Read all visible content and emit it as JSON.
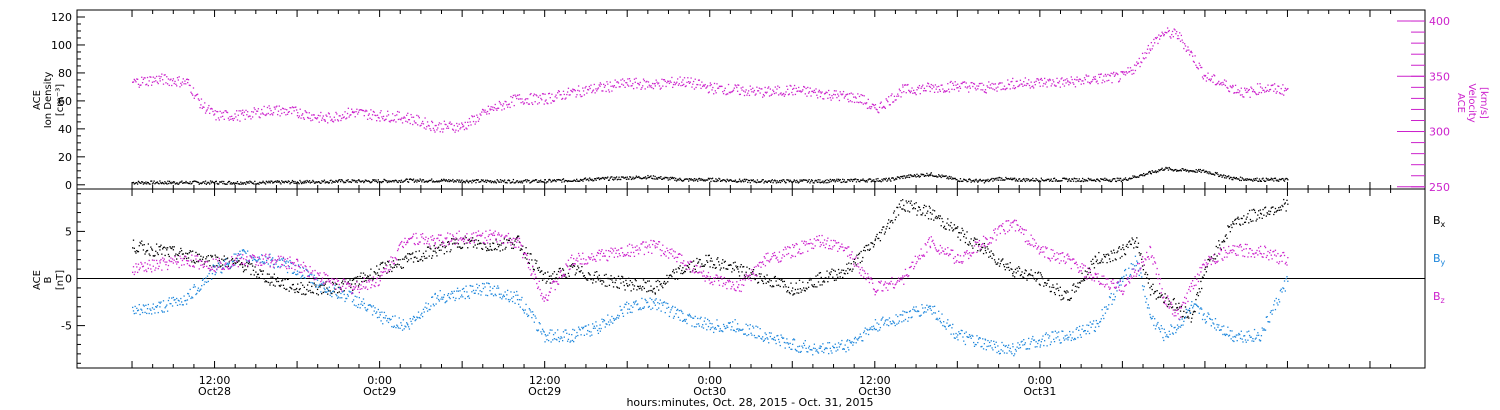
{
  "chart_data": [
    {
      "type": "scatter",
      "ylabel_lines": [
        "ACE",
        "Ion Density",
        "[cm⁻³]"
      ],
      "y2label_lines": [
        "ACE",
        "Velocity",
        "[km/s]"
      ],
      "ylim": [
        -3,
        125
      ],
      "yticks": [
        0,
        20,
        40,
        60,
        80,
        100,
        120
      ],
      "y2lim": [
        248,
        410
      ],
      "y2ticks": [
        250,
        300,
        350,
        400
      ],
      "series": [
        {
          "color": "#000000",
          "axis": "left",
          "x": [
            0,
            5,
            10,
            15,
            20,
            25,
            30,
            35,
            40,
            45,
            50,
            55,
            60,
            65,
            70,
            75,
            80,
            85,
            90,
            95,
            100,
            105,
            110,
            112,
            116,
            120,
            124,
            126,
            128,
            132,
            138,
            144,
            148,
            150,
            152,
            156,
            160,
            164,
            168
          ],
          "y": [
            2,
            2,
            2,
            2,
            2,
            2.5,
            3,
            3,
            3.5,
            3.5,
            3,
            3,
            3,
            4,
            5,
            6,
            4,
            4,
            3,
            3,
            3,
            3.5,
            4,
            6,
            8,
            4,
            3,
            5,
            4,
            4,
            4,
            4,
            9,
            12,
            11,
            10,
            5,
            4,
            4
          ]
        },
        {
          "color": "#cc22cc",
          "axis": "right",
          "x": [
            0,
            4,
            8,
            10,
            12,
            16,
            20,
            24,
            28,
            32,
            36,
            40,
            44,
            48,
            52,
            56,
            60,
            64,
            68,
            72,
            76,
            80,
            84,
            88,
            92,
            96,
            100,
            104,
            106,
            108,
            112,
            116,
            120,
            124,
            128,
            132,
            136,
            140,
            144,
            146,
            148,
            150,
            152,
            154,
            156,
            160,
            162,
            164,
            168
          ],
          "y": [
            345,
            348,
            345,
            325,
            315,
            315,
            320,
            318,
            312,
            318,
            315,
            313,
            305,
            305,
            320,
            330,
            330,
            336,
            340,
            344,
            343,
            346,
            340,
            338,
            336,
            338,
            335,
            332,
            330,
            320,
            338,
            340,
            342,
            340,
            344,
            345,
            345,
            348,
            350,
            360,
            378,
            390,
            388,
            370,
            350,
            340,
            335,
            340,
            338
          ]
        }
      ]
    },
    {
      "type": "scatter",
      "ylabel_lines": [
        "ACE",
        "B",
        "[nT]"
      ],
      "ylim": [
        -9.5,
        9.5
      ],
      "yticks": [
        -5,
        0,
        5
      ],
      "series": [
        {
          "name": "Bx",
          "color": "#000000",
          "x": [
            0,
            4,
            8,
            12,
            16,
            20,
            24,
            28,
            32,
            36,
            40,
            44,
            48,
            52,
            56,
            60,
            64,
            68,
            72,
            76,
            80,
            84,
            88,
            92,
            96,
            100,
            104,
            108,
            112,
            116,
            120,
            124,
            128,
            132,
            136,
            140,
            144,
            146,
            148,
            150,
            152,
            154,
            156,
            160,
            164,
            168
          ],
          "y": [
            3.5,
            3,
            2.5,
            2,
            1.5,
            0,
            -1,
            -1,
            -0.5,
            1,
            2,
            3,
            4,
            3.5,
            4,
            0,
            1,
            0,
            -0.5,
            -1,
            1,
            2,
            1,
            0,
            -1,
            0,
            1,
            4,
            8,
            7,
            5,
            3,
            1,
            0,
            -2,
            2,
            3,
            4,
            -1,
            -2,
            -3,
            -4,
            1,
            6,
            7,
            8
          ]
        },
        {
          "name": "By",
          "color": "#1e87dc",
          "x": [
            0,
            4,
            8,
            12,
            16,
            20,
            24,
            28,
            32,
            36,
            40,
            44,
            48,
            52,
            56,
            60,
            64,
            68,
            72,
            76,
            80,
            84,
            88,
            92,
            96,
            100,
            104,
            108,
            112,
            116,
            120,
            124,
            128,
            132,
            136,
            140,
            144,
            146,
            148,
            150,
            152,
            154,
            156,
            160,
            164,
            168
          ],
          "y": [
            -3.5,
            -3,
            -2,
            1,
            2.5,
            2,
            1,
            -1,
            -2,
            -4,
            -5,
            -2,
            -1.5,
            -1,
            -2,
            -6,
            -6,
            -5,
            -3,
            -2.5,
            -4,
            -5,
            -5,
            -6,
            -7,
            -7.5,
            -7,
            -5,
            -4,
            -3,
            -6,
            -7,
            -7.5,
            -6.5,
            -6,
            -5,
            0,
            2,
            -4,
            -6,
            -5,
            -3,
            -4,
            -6,
            -6,
            0
          ]
        },
        {
          "name": "Bz",
          "color": "#cc22cc",
          "x": [
            0,
            4,
            8,
            12,
            16,
            20,
            24,
            28,
            32,
            36,
            40,
            44,
            48,
            52,
            56,
            60,
            64,
            68,
            72,
            76,
            80,
            84,
            88,
            92,
            96,
            100,
            104,
            108,
            112,
            116,
            120,
            124,
            128,
            132,
            136,
            140,
            144,
            146,
            148,
            150,
            152,
            154,
            156,
            160,
            164,
            168
          ],
          "y": [
            1,
            1.5,
            2,
            1.5,
            2,
            2,
            1.5,
            0,
            -1,
            0,
            4.5,
            4,
            4.5,
            4.5,
            4,
            -2,
            2,
            2.5,
            3,
            3.5,
            2,
            0,
            -1,
            2,
            3,
            4,
            3,
            -1,
            0,
            4,
            2,
            4,
            6,
            3,
            2,
            0,
            -1,
            1,
            3,
            -2,
            -4,
            -1,
            2,
            3,
            3,
            2
          ]
        }
      ]
    }
  ],
  "bfield_legend": {
    "bx_main": "B",
    "bx_sub": "x",
    "by_main": "B",
    "by_sub": "y",
    "bz_main": "B",
    "bz_sub": "z"
  },
  "time_axis": {
    "xlim_hours": [
      -8,
      188
    ],
    "tick_hours": [
      12,
      36,
      60,
      84,
      108,
      132,
      156
    ],
    "tick_times": [
      "12:00",
      "0:00",
      "12:00",
      "0:00",
      "12:00",
      "0:00",
      ""
    ],
    "tick_dates": [
      "Oct28",
      "Oct29",
      "Oct29",
      "Oct30",
      "Oct30",
      "Oct31",
      ""
    ],
    "xlabel": "hours:minutes, Oct. 28, 2015 - Oct. 31, 2015"
  }
}
